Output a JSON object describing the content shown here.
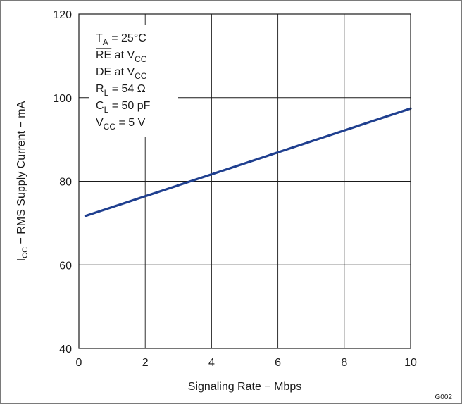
{
  "chart_data": {
    "type": "line",
    "title": "",
    "xlabel": "Signaling Rate − Mbps",
    "ylabel": {
      "main": "I",
      "sub": "CC",
      "rest": " − RMS Supply Current − mA"
    },
    "xlim": [
      0,
      10
    ],
    "ylim": [
      40,
      120
    ],
    "x_ticks": [
      "0",
      "2",
      "4",
      "6",
      "8",
      "10"
    ],
    "y_ticks": [
      "40",
      "60",
      "80",
      "100",
      "120"
    ],
    "grid": true,
    "series": [
      {
        "color": "#1f3f8f",
        "points": [
          {
            "x": 0.2,
            "y": 71.7
          },
          {
            "x": 10,
            "y": 97.4
          }
        ]
      }
    ],
    "conditions": [
      {
        "main": "T",
        "sub": "A",
        "rest": " = 25°C",
        "overline": false
      },
      {
        "main": "RE",
        "sub": "",
        "rest": " at V",
        "sub2": "CC",
        "overline": true
      },
      {
        "main": "DE at V",
        "sub": "CC",
        "rest": "",
        "overline": false
      },
      {
        "main": "R",
        "sub": "L",
        "rest": " = 54 Ω",
        "overline": false
      },
      {
        "main": "C",
        "sub": "L",
        "rest": " = 50 pF",
        "overline": false
      },
      {
        "main": "V",
        "sub": "CC",
        "rest": " = 5 V",
        "overline": false
      }
    ],
    "figure_code": "G002"
  }
}
